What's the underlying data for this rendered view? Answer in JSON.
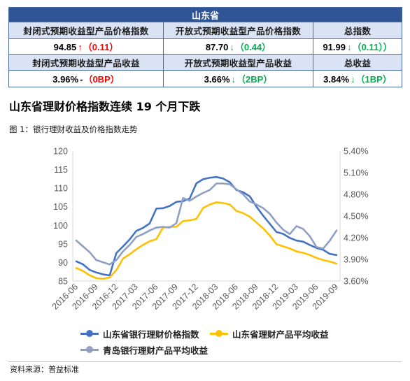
{
  "table": {
    "region_title": "山东省",
    "index_headers": [
      "封闭式预期收益型产品价格指数",
      "开放式预期收益型产品价格指数",
      "总指数"
    ],
    "index_values": [
      {
        "value": "94.85",
        "mark": "↑",
        "change": "（0.11）",
        "mark_color": "#FF0000",
        "change_color": "#FF0000"
      },
      {
        "value": "87.70",
        "mark": "↓",
        "change": "（0.44）",
        "mark_color": "#00B050",
        "change_color": "#00B050"
      },
      {
        "value": "91.99",
        "mark": "↓",
        "change": "（0.11））",
        "mark_color": "#00B050",
        "change_color": "#00B050"
      }
    ],
    "yield_headers": [
      "封闭式预期收益型产品收益",
      "开放式预期收益型产品收益",
      "总收益"
    ],
    "yield_values": [
      {
        "value": "3.96%",
        "mark": "-",
        "change": "（0BP）",
        "mark_color": "#000000",
        "change_color": "#FF0000"
      },
      {
        "value": "3.66%",
        "mark": "↓",
        "change": "（2BP）",
        "mark_color": "#00B050",
        "change_color": "#00B050"
      },
      {
        "value": "3.84%",
        "mark": "↓",
        "change": "（1BP）",
        "mark_color": "#00B050",
        "change_color": "#00B050"
      }
    ]
  },
  "heading": "山东省理财价格指数连续 19 个月下跌",
  "figure_caption": "图 1：银行理财收益及价格指数走势",
  "source": "资料来源：普益标准",
  "chart_data": {
    "type": "line",
    "title": "",
    "xlabel": "",
    "x": [
      "2016-06",
      "2016-07",
      "2016-08",
      "2016-09",
      "2016-10",
      "2016-11",
      "2016-12",
      "2017-01",
      "2017-02",
      "2017-03",
      "2017-04",
      "2017-05",
      "2017-06",
      "2017-07",
      "2017-08",
      "2017-09",
      "2017-10",
      "2017-11",
      "2017-12",
      "2018-01",
      "2018-02",
      "2018-03",
      "2018-04",
      "2018-05",
      "2018-06",
      "2018-07",
      "2018-08",
      "2018-09",
      "2018-10",
      "2018-11",
      "2018-12",
      "2019-01",
      "2019-02",
      "2019-03",
      "2019-04",
      "2019-05",
      "2019-06",
      "2019-07",
      "2019-08",
      "2019-09"
    ],
    "xticks": [
      "2016-06",
      "2016-09",
      "2016-12",
      "2017-03",
      "2017-06",
      "2017-09",
      "2017-12",
      "2018-03",
      "2018-06",
      "2018-09",
      "2018-12",
      "2019-03",
      "2019-06",
      "2019-09"
    ],
    "y_left": {
      "label": "",
      "range": [
        85,
        120
      ],
      "ticks": [
        "120",
        "115",
        "110",
        "105",
        "100",
        "95",
        "90",
        "85"
      ]
    },
    "y_right": {
      "label": "",
      "range": [
        3.6,
        5.4
      ],
      "ticks": [
        "5.40%",
        "5.10%",
        "4.80%",
        "4.50%",
        "4.20%",
        "3.90%",
        "3.60%"
      ]
    },
    "grid": false,
    "legend": "bottom",
    "series": [
      {
        "name": "山东省银行理财价格指数",
        "axis": "left",
        "color": "#4472C4",
        "values": [
          90.3,
          89.5,
          88.0,
          87.3,
          86.8,
          86.5,
          92.5,
          94.3,
          96.2,
          98.5,
          99.3,
          100.5,
          104.5,
          104.6,
          105.2,
          106.3,
          106.5,
          107.2,
          111.3,
          112.4,
          112.8,
          113.0,
          112.6,
          111.6,
          109.5,
          108.9,
          107.8,
          105.0,
          102.6,
          100.4,
          98.2,
          97.7,
          96.6,
          95.9,
          95.6,
          94.7,
          93.9,
          93.4,
          92.3,
          92.0
        ]
      },
      {
        "name": "山东省理财产品平均收益",
        "axis": "right",
        "color": "#FFC000",
        "values": [
          3.78,
          3.74,
          3.68,
          3.64,
          3.63,
          3.65,
          3.75,
          3.91,
          3.97,
          4.04,
          4.1,
          4.15,
          4.18,
          4.34,
          4.35,
          4.35,
          4.43,
          4.44,
          4.46,
          4.61,
          4.66,
          4.69,
          4.68,
          4.66,
          4.57,
          4.54,
          4.49,
          4.41,
          4.33,
          4.23,
          4.11,
          4.08,
          4.05,
          4.01,
          3.99,
          3.96,
          3.92,
          3.89,
          3.87,
          3.84
        ]
      },
      {
        "name": "青岛银行理财产品平均收益",
        "axis": "right",
        "color": "#8FA0C4",
        "values": [
          4.16,
          4.08,
          4.0,
          3.89,
          3.86,
          3.83,
          3.89,
          4.01,
          4.1,
          4.21,
          4.25,
          4.3,
          4.34,
          4.35,
          4.34,
          4.4,
          4.75,
          4.71,
          4.77,
          4.82,
          4.86,
          4.95,
          4.95,
          4.94,
          4.87,
          4.8,
          4.7,
          4.66,
          4.61,
          4.53,
          4.41,
          4.31,
          4.25,
          4.36,
          4.32,
          4.22,
          4.07,
          4.05,
          4.16,
          4.3
        ]
      }
    ]
  }
}
